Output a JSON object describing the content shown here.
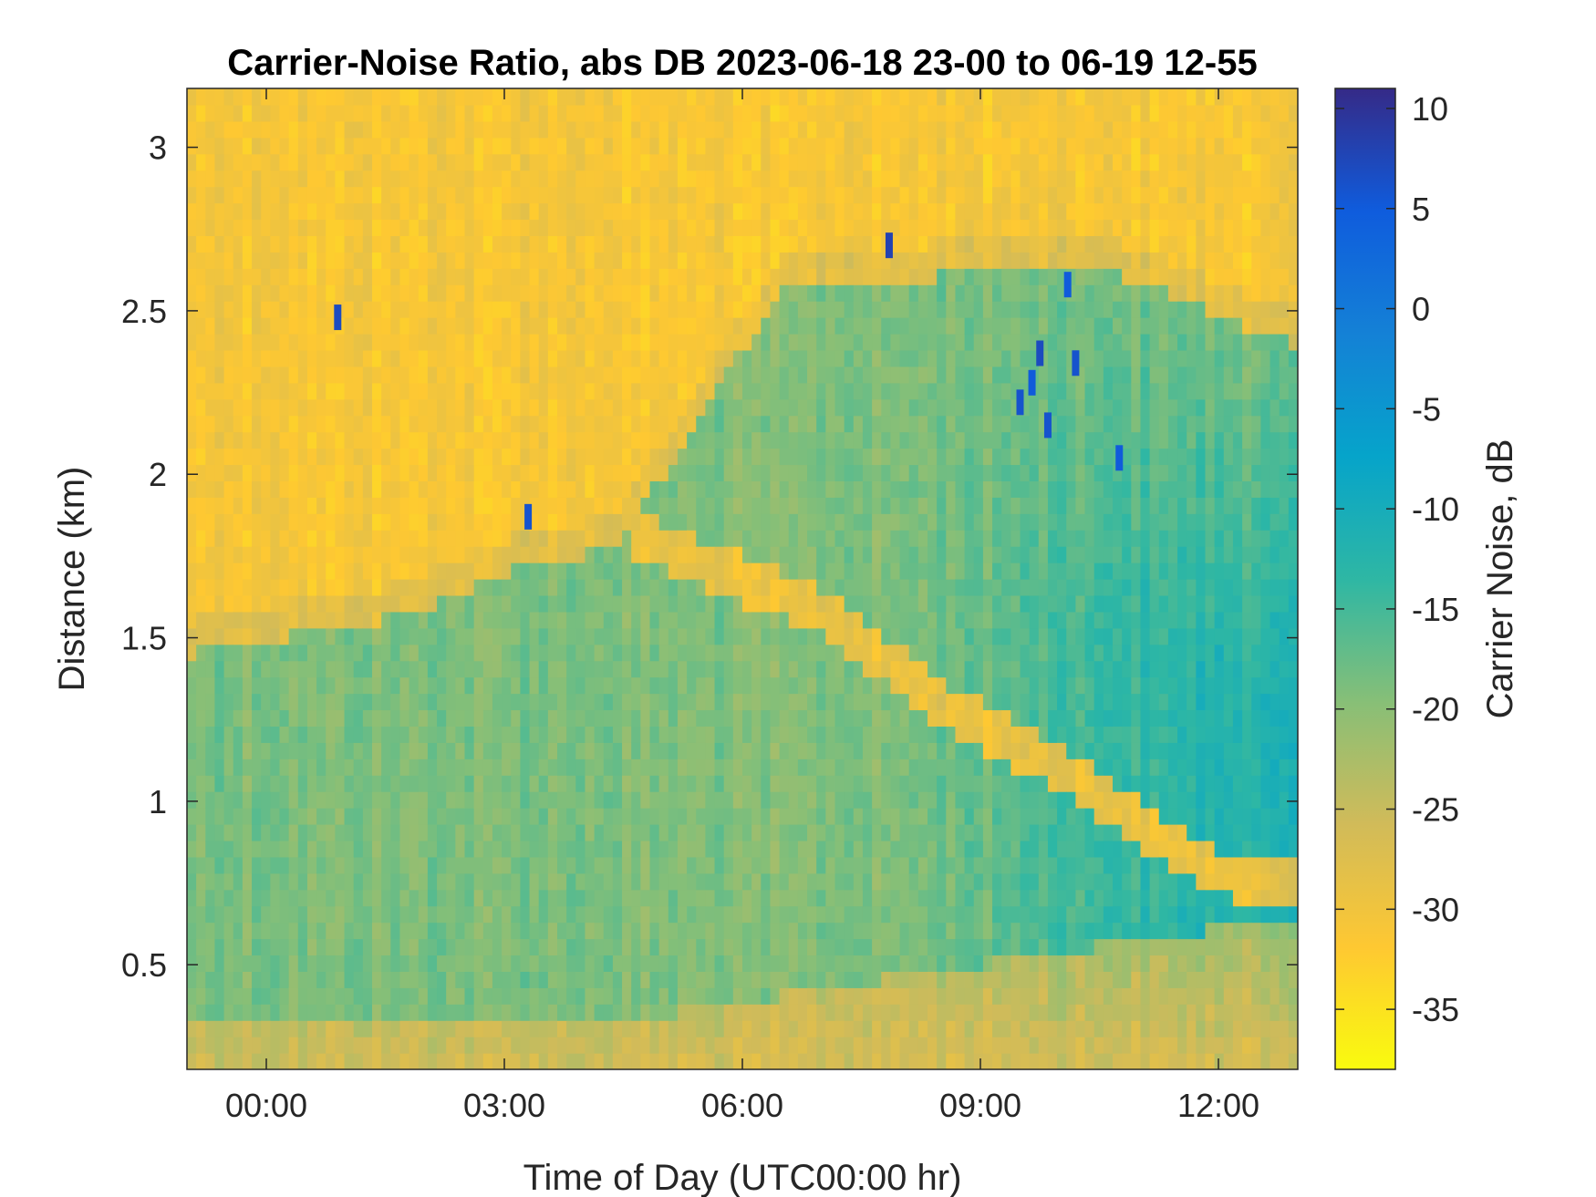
{
  "chart_data": {
    "type": "heatmap",
    "title": "Carrier-Noise Ratio, abs DB 2023-06-18 23-00 to 06-19 12-55",
    "xlabel": "Time of Day (UTC00:00 hr)",
    "ylabel": "Distance (km)",
    "x_unit": "hours relative to 2023-06-19 00:00 UTC",
    "xlim": [
      -1.0,
      13.0
    ],
    "ylim": [
      0.18,
      3.18
    ],
    "x_ticks": [
      0,
      3,
      6,
      9,
      12
    ],
    "x_tick_labels": [
      "00:00",
      "03:00",
      "06:00",
      "09:00",
      "12:00"
    ],
    "y_ticks": [
      0.5,
      1,
      1.5,
      2,
      2.5,
      3
    ],
    "y_tick_labels": [
      "0.5",
      "1",
      "1.5",
      "2",
      "2.5",
      "3"
    ],
    "colorbar": {
      "label": "Carrier Noise, dB",
      "range": [
        -38,
        11
      ],
      "ticks": [
        10,
        5,
        0,
        -5,
        -10,
        -15,
        -20,
        -25,
        -30,
        -35
      ],
      "tick_labels": [
        "10",
        "5",
        "0",
        "-5",
        "-10",
        "-15",
        "-20",
        "-25",
        "-30",
        "-35"
      ],
      "colormap": "parula",
      "colors": [
        "#352a87",
        "#0f5cdd",
        "#1481d6",
        "#06a4ca",
        "#2eb7a4",
        "#87bf77",
        "#d1bb59",
        "#fec832",
        "#f9fb0e"
      ]
    },
    "grid": false,
    "cnr_profile_db": {
      "above_aerosol_layer": -31,
      "aerosol_layer_top_edge": -28,
      "aerosol_layer_core": -19,
      "aerosol_layer_core_late_morning": -12,
      "near_surface": -28,
      "elevated_residual_band": -29
    },
    "aerosol_layer_top_km": [
      {
        "t": -1.0,
        "h": 1.55
      },
      {
        "t": 2.0,
        "h": 1.68
      },
      {
        "t": 3.0,
        "h": 1.8
      },
      {
        "t": 3.8,
        "h": 1.84
      },
      {
        "t": 4.5,
        "h": 1.9
      },
      {
        "t": 5.5,
        "h": 2.3
      },
      {
        "t": 6.5,
        "h": 2.66
      },
      {
        "t": 8.0,
        "h": 2.7
      },
      {
        "t": 10.0,
        "h": 2.72
      },
      {
        "t": 11.0,
        "h": 2.7
      },
      {
        "t": 12.0,
        "h": 2.58
      },
      {
        "t": 13.0,
        "h": 2.5
      }
    ],
    "residual_band_km": [
      {
        "t": 4.6,
        "h": 1.82
      },
      {
        "t": 6.0,
        "h": 1.68
      },
      {
        "t": 7.0,
        "h": 1.58
      },
      {
        "t": 8.5,
        "h": 1.3
      },
      {
        "t": 10.0,
        "h": 1.1
      },
      {
        "t": 11.0,
        "h": 0.93
      },
      {
        "t": 12.0,
        "h": 0.78
      },
      {
        "t": 13.0,
        "h": 0.75
      }
    ],
    "cloud_returns": [
      {
        "t": 0.9,
        "h": 2.48,
        "db": 7
      },
      {
        "t": 3.3,
        "h": 1.87,
        "db": 6
      },
      {
        "t": 7.85,
        "h": 2.7,
        "db": 8
      },
      {
        "t": 9.5,
        "h": 2.22,
        "db": 6
      },
      {
        "t": 9.65,
        "h": 2.28,
        "db": 5
      },
      {
        "t": 9.75,
        "h": 2.37,
        "db": 7
      },
      {
        "t": 9.85,
        "h": 2.15,
        "db": 6
      },
      {
        "t": 10.1,
        "h": 2.58,
        "db": 5
      },
      {
        "t": 10.2,
        "h": 2.34,
        "db": 6
      },
      {
        "t": 10.75,
        "h": 2.05,
        "db": 5
      }
    ]
  }
}
